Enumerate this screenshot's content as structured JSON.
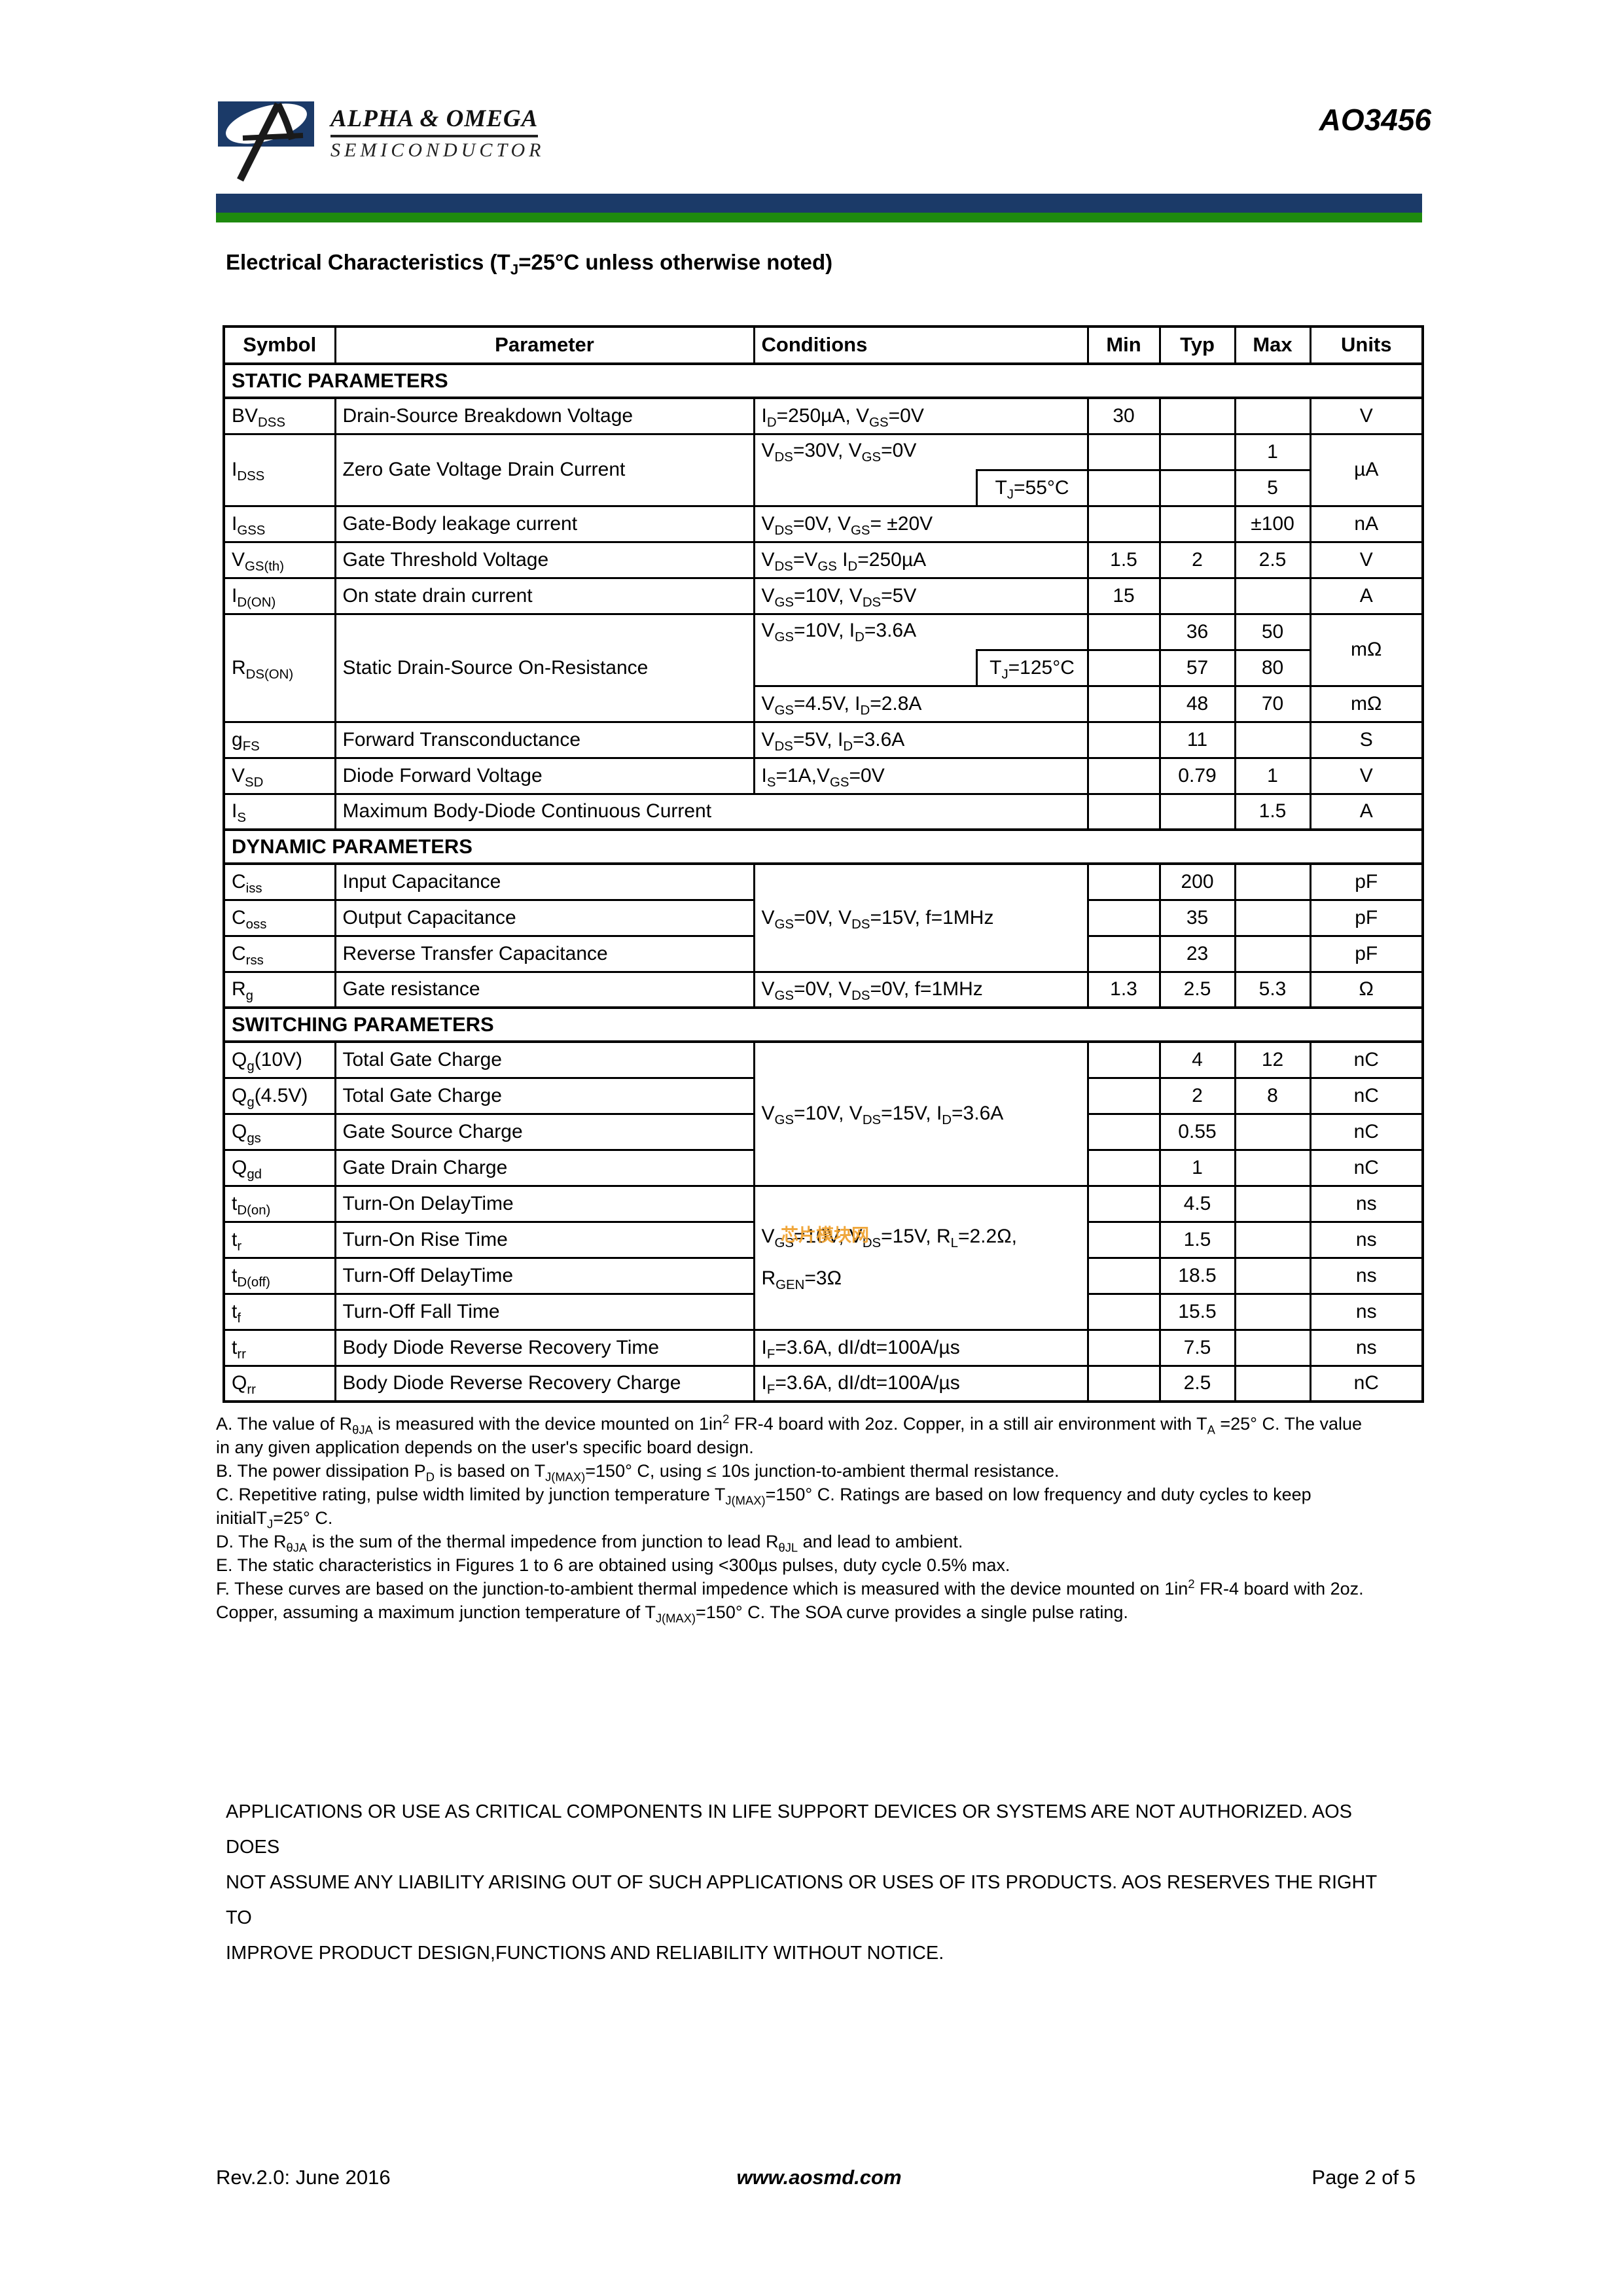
{
  "header": {
    "brand_line1": "ALPHA & OMEGA",
    "brand_line2": "SEMICONDUCTOR",
    "part_number": "AO3456",
    "navy_color": "#1b3a68",
    "green_color": "#1e8a0e"
  },
  "title": "Electrical Characteristics (T_{J}=25°C unless otherwise noted)",
  "watermark": {
    "text": "芯片模块网",
    "color": "#f0a332"
  },
  "table": {
    "headers": {
      "symbol": "Symbol",
      "parameter": "Parameter",
      "conditions": "Conditions",
      "min": "Min",
      "typ": "Typ",
      "max": "Max",
      "units": "Units"
    },
    "sections": {
      "static": "STATIC PARAMETERS",
      "dynamic": "DYNAMIC PARAMETERS",
      "switching": "SWITCHING PARAMETERS"
    },
    "rows": {
      "bvdss": {
        "sym": "BV_{DSS}",
        "param": "Drain-Source Breakdown Voltage",
        "cond": "I_{D}=250µA, V_{GS}=0V",
        "min": "30",
        "units": "V"
      },
      "idss": {
        "sym": "I_{DSS}",
        "param": "Zero Gate Voltage Drain Current",
        "cond": "V_{DS}=30V, V_{GS}=0V",
        "cond2": "T_{J}=55°C",
        "max1": "1",
        "max2": "5",
        "units": "µA"
      },
      "igss": {
        "sym": "I_{GSS}",
        "param": "Gate-Body leakage current",
        "cond": "V_{DS}=0V, V_{GS}= ±20V",
        "max": "±100",
        "units": "nA"
      },
      "vgsth": {
        "sym": "V_{GS(th)}",
        "param": "Gate Threshold Voltage",
        "cond": "V_{DS}=V_{GS} I_{D}=250µA",
        "min": "1.5",
        "typ": "2",
        "max": "2.5",
        "units": "V"
      },
      "idon": {
        "sym": "I_{D(ON)}",
        "param": "On state drain current",
        "cond": "V_{GS}=10V, V_{DS}=5V",
        "min": "15",
        "units": "A"
      },
      "rdson": {
        "sym": "R_{DS(ON)}",
        "param": "Static Drain-Source On-Resistance",
        "cond12": "V_{GS}=10V, I_{D}=3.6A",
        "cond2": "T_{J}=125°C",
        "typ1": "36",
        "max1": "50",
        "typ2": "57",
        "max2": "80",
        "units12": "mΩ",
        "cond3": "V_{GS}=4.5V, I_{D}=2.8A",
        "typ3": "48",
        "max3": "70",
        "units3": "mΩ"
      },
      "gfs": {
        "sym": "g_{FS}",
        "param": "Forward Transconductance",
        "cond": "V_{DS}=5V, I_{D}=3.6A",
        "typ": "11",
        "units": "S"
      },
      "vsd": {
        "sym": "V_{SD}",
        "param": "Diode Forward Voltage",
        "cond": "I_{S}=1A,V_{GS}=0V",
        "typ": "0.79",
        "max": "1",
        "units": "V"
      },
      "is": {
        "sym": "I_{S}",
        "param": "Maximum Body-Diode Continuous Current",
        "max": "1.5",
        "units": "A"
      },
      "ciss": {
        "sym": "C_{iss}",
        "param": "Input Capacitance",
        "typ": "200",
        "units": "pF"
      },
      "coss": {
        "sym": "C_{oss}",
        "param": "Output Capacitance",
        "typ": "35",
        "units": "pF"
      },
      "crss": {
        "sym": "C_{rss}",
        "param": "Reverse Transfer Capacitance",
        "typ": "23",
        "units": "pF"
      },
      "cap_cond": "V_{GS}=0V, V_{DS}=15V, f=1MHz",
      "rg": {
        "sym": "R_{g}",
        "param": "Gate resistance",
        "cond": "V_{GS}=0V, V_{DS}=0V, f=1MHz",
        "min": "1.3",
        "typ": "2.5",
        "max": "5.3",
        "units": "Ω"
      },
      "qg10": {
        "sym": "Q_{g}(10V)",
        "param": "Total Gate Charge",
        "typ": "4",
        "max": "12",
        "units": "nC"
      },
      "qg45": {
        "sym": "Q_{g}(4.5V)",
        "param": "Total Gate Charge",
        "typ": "2",
        "max": "8",
        "units": "nC"
      },
      "qgs": {
        "sym": "Q_{gs}",
        "param": "Gate Source Charge",
        "typ": "0.55",
        "units": "nC"
      },
      "qgd": {
        "sym": "Q_{gd}",
        "param": "Gate Drain Charge",
        "typ": "1",
        "units": "nC"
      },
      "charge_cond": "V_{GS}=10V, V_{DS}=15V, I_{D}=3.6A",
      "tdon": {
        "sym": "t_{D(on)}",
        "param": "Turn-On DelayTime",
        "typ": "4.5",
        "units": "ns"
      },
      "tr": {
        "sym": "t_{r}",
        "param": "Turn-On Rise Time",
        "typ": "1.5",
        "units": "ns"
      },
      "tdoff": {
        "sym": "t_{D(off)}",
        "param": "Turn-Off DelayTime",
        "typ": "18.5",
        "units": "ns"
      },
      "tf": {
        "sym": "t_{f}",
        "param": "Turn-Off Fall Time",
        "typ": "15.5",
        "units": "ns"
      },
      "sw_cond1": "V_{GS}=10V, V_{DS}=15V, R_{L}=2.2Ω,",
      "sw_cond2": "R_{GEN}=3Ω",
      "trr": {
        "sym": "t_{rr}",
        "param": "Body Diode Reverse Recovery Time",
        "cond": "I_{F}=3.6A, dI/dt=100A/µs",
        "typ": "7.5",
        "units": "ns"
      },
      "qrr": {
        "sym": "Q_{rr}",
        "param": "Body Diode Reverse Recovery Charge",
        "cond": "I_{F}=3.6A, dI/dt=100A/µs",
        "typ": "2.5",
        "units": "nC"
      }
    }
  },
  "notes": [
    "A. The value of R_{θJA} is measured with the device mounted on 1in^{2} FR-4 board with 2oz. Copper, in a still air environment with T_{A} =25° C. The value in any given application depends on the user's specific board design.",
    "B. The power dissipation P_{D} is based on T_{J(MAX)}=150° C, using ≤ 10s junction-to-ambient thermal resistance.",
    "C.  Repetitive rating, pulse width limited by junction temperature T_{J(MAX)}=150° C. Ratings are based on low frequency and duty cycles to keep initialT_{J}=25° C.",
    "D. The R_{θJA} is the sum of the thermal impedence from junction to lead R_{θJL} and lead to ambient.",
    "E. The static characteristics in Figures 1 to 6 are obtained using <300µs pulses, duty cycle 0.5% max.",
    "F. These curves are based on the junction-to-ambient thermal impedence which is measured with the device mounted on 1in^{2} FR-4 board with 2oz. Copper, assuming a maximum junction temperature of T_{J(MAX)}=150° C. The SOA curve provides a single pulse rating."
  ],
  "disclaimer_lines": [
    "APPLICATIONS OR USE AS CRITICAL COMPONENTS IN LIFE SUPPORT DEVICES OR SYSTEMS ARE NOT AUTHORIZED. AOS DOES",
    "NOT ASSUME ANY LIABILITY ARISING OUT OF SUCH APPLICATIONS OR USES OF ITS PRODUCTS.  AOS RESERVES THE RIGHT TO",
    "IMPROVE PRODUCT DESIGN,FUNCTIONS AND RELIABILITY WITHOUT NOTICE."
  ],
  "footer": {
    "left": "Rev.2.0: June 2016",
    "center": "www.aosmd.com",
    "right": "Page 2 of 5"
  }
}
